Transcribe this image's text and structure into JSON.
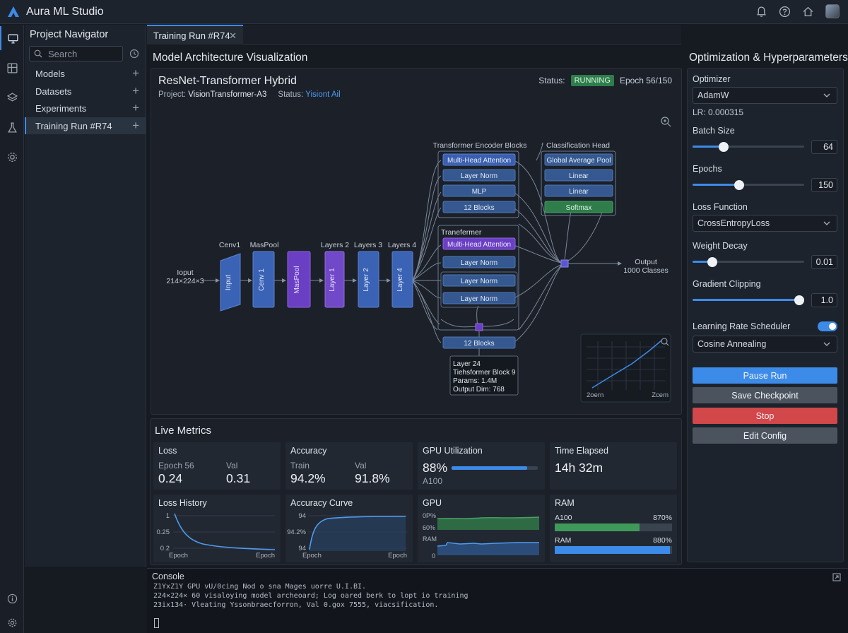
{
  "app": {
    "title": "Aura ML Studio"
  },
  "navigator": {
    "title": "Project Navigator",
    "search_placeholder": "Search",
    "items": [
      {
        "label": "Models"
      },
      {
        "label": "Datasets"
      },
      {
        "label": "Experiments"
      },
      {
        "label": "Training Run #R74",
        "active": true
      }
    ]
  },
  "tabs": [
    {
      "label": "Training Run #R74",
      "close": "✕"
    }
  ],
  "architecture": {
    "panel_title": "Model Architecture Visualization",
    "model_name": "ResNet-Transformer Hybrid",
    "project_label": "Project:",
    "project_value": "VisionTransformer-A3",
    "status_label": "Status:",
    "status_link": "Yisiont Ail",
    "status_text": "Status:",
    "status_badge": "RUNNING",
    "epoch_text": "Epoch 56/150",
    "input_label": "Ioput",
    "input_dims": "214×224×3",
    "input_block": "Input",
    "stages": [
      {
        "top": "Cenv1",
        "block": "Cenv 1"
      },
      {
        "top": "MasPool",
        "block": "MasPool"
      },
      {
        "top": "Layers 2",
        "block": "Layer 1"
      },
      {
        "top": "Layers 3",
        "block": "Layer 2"
      },
      {
        "top": "Layers 4",
        "block": "Layer 4"
      }
    ],
    "encoder_title": "Transformer Encoder Blocks",
    "encoder_blocks": [
      "Multi-Head Attention",
      "Layer Norm",
      "MLP",
      "12 Blocks"
    ],
    "transformer_label": "Tranefermer",
    "transformer_blocks": [
      "Multi-Head Attention",
      "Layer Norm",
      "Layer Norm",
      "Layer Norm"
    ],
    "bottom_block": "12 Blocks",
    "head_title": "Classification Head",
    "head_blocks": [
      "Global Average Pool",
      "Linear",
      "Linear",
      "Softmax"
    ],
    "output_label": "Output",
    "output_classes": "1000 Classes",
    "tooltip": [
      "Layer 24",
      "Tiehsformer Block 9",
      "Params: 1.4M",
      "Output Dim: 768"
    ],
    "minimap_left": "2oern",
    "minimap_right": "Zcem"
  },
  "optimization": {
    "title": "Optimization & Hyperparameters",
    "optimizer_label": "Optimizer",
    "optimizer_value": "AdamW",
    "lr_text": "LR: 0.000315",
    "batch_label": "Batch Size",
    "batch_value": "64",
    "batch_fraction": 0.28,
    "epochs_label": "Epochs",
    "epochs_value": "150",
    "epochs_fraction": 0.42,
    "loss_label": "Loss Function",
    "loss_value": "CrossEntropyLoss",
    "wd_label": "Weight Decay",
    "wd_value": "0.01",
    "wd_fraction": 0.18,
    "gc_label": "Gradient Clipping",
    "gc_value": "1.0",
    "gc_fraction": 1.0,
    "scheduler_label": "Learning Rate Scheduler",
    "scheduler_value": "Cosine Annealing",
    "scheduler_enabled": true,
    "buttons": {
      "pause": "Pause Run",
      "save": "Save Checkpoint",
      "stop": "Stop",
      "edit": "Edit Config"
    }
  },
  "metrics": {
    "title": "Live Metrics",
    "loss": {
      "title": "Loss",
      "epoch_label": "Epoch 56",
      "epoch_value": "0.24",
      "val_label": "Val",
      "val_value": "0.31"
    },
    "accuracy": {
      "title": "Accuracy",
      "train_label": "Train",
      "train_value": "94.2%",
      "val_label": "Val",
      "val_value": "91.8%"
    },
    "gpu": {
      "title": "GPU Utilization",
      "value": "88%",
      "device": "A100",
      "fraction": 0.88
    },
    "time": {
      "title": "Time Elapsed",
      "value": "14h 32m"
    },
    "loss_history": {
      "title": "Loss History",
      "yticks": [
        "1",
        "0.25",
        "0.2"
      ],
      "xleft": "Epoch",
      "xright": "Epoch"
    },
    "accuracy_curve": {
      "title": "Accuracy Curve",
      "yticks": [
        "94",
        "94.2%",
        "94"
      ],
      "xleft": "Epoch",
      "xright": "Epoch"
    },
    "gpu_chart": {
      "title": "GPU",
      "labels": [
        "0P%",
        "60%",
        "RAM",
        "0"
      ]
    },
    "ram": {
      "title": "RAM",
      "row1_label": "A100",
      "row1_value": "870%",
      "row1_fraction": 0.72,
      "row2_label": "RAM",
      "row2_value": "880%",
      "row2_fraction": 0.98
    }
  },
  "console": {
    "title": "Console",
    "lines": [
      "Z1YxZ1Y  GPU vU/0cing  Nod  o  sna  Mages  uorre  U.I.BI.",
      "224×224× 60 visaloying model archeoard; Log oared berk to lopt io training",
      "23ix134· Vleating Yssonbraecforron, Val 0.gox 7555, viacsification."
    ]
  },
  "colors": {
    "accent": "#3d8be8",
    "running": "#2e7d4a",
    "stop": "#d1474a",
    "purple": "#6a3fc4",
    "block_blue": "#3b63b5"
  }
}
